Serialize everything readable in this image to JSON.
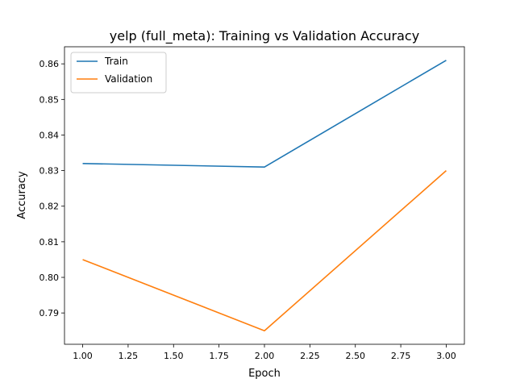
{
  "chart_data": {
    "type": "line",
    "title": "yelp (full_meta): Training vs Validation Accuracy",
    "xlabel": "Epoch",
    "ylabel": "Accuracy",
    "x": [
      1,
      2,
      3
    ],
    "xlim": [
      0.9,
      3.1
    ],
    "ylim": [
      0.7812,
      0.8648
    ],
    "xticks": [
      1.0,
      1.25,
      1.5,
      1.75,
      2.0,
      2.25,
      2.5,
      2.75,
      3.0
    ],
    "xtick_labels": [
      "1.00",
      "1.25",
      "1.50",
      "1.75",
      "2.00",
      "2.25",
      "2.50",
      "2.75",
      "3.00"
    ],
    "yticks": [
      0.79,
      0.8,
      0.81,
      0.82,
      0.83,
      0.84,
      0.85,
      0.86
    ],
    "ytick_labels": [
      "0.79",
      "0.80",
      "0.81",
      "0.82",
      "0.83",
      "0.84",
      "0.85",
      "0.86"
    ],
    "series": [
      {
        "name": "Train",
        "color": "#1f77b4",
        "values": [
          0.832,
          0.831,
          0.861
        ]
      },
      {
        "name": "Validation",
        "color": "#ff7f0e",
        "values": [
          0.805,
          0.785,
          0.83
        ]
      }
    ],
    "grid": false,
    "legend_position": "top-left"
  }
}
